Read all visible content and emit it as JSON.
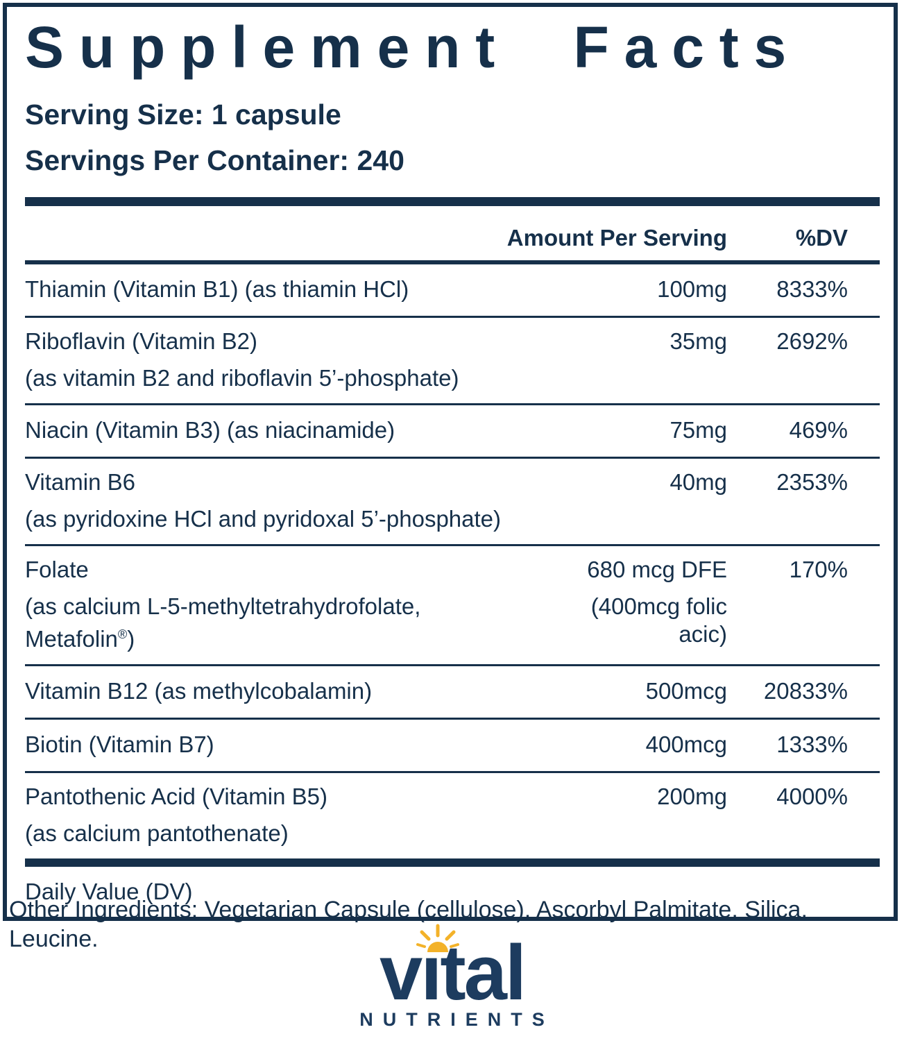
{
  "label": {
    "title": "Supplement Facts",
    "serving_size": "Serving Size: 1 capsule",
    "servings_per_container": "Servings Per Container: 240",
    "columns": {
      "amount": "Amount Per Serving",
      "dv": "%DV"
    },
    "rows": [
      {
        "name": "Thiamin (Vitamin B1) (as thiamin HCl)",
        "name2": "",
        "amount": "100mg",
        "amount2": "",
        "dv": "8333%"
      },
      {
        "name": "Riboflavin (Vitamin B2)",
        "name2": "(as vitamin B2 and riboflavin 5’-phosphate)",
        "amount": "35mg",
        "amount2": "",
        "dv": "2692%"
      },
      {
        "name": "Niacin (Vitamin B3) (as niacinamide)",
        "name2": "",
        "amount": "75mg",
        "amount2": "",
        "dv": "469%"
      },
      {
        "name": "Vitamin B6",
        "name2": "(as pyridoxine HCl and pyridoxal 5’-phosphate)",
        "amount": "40mg",
        "amount2": "",
        "dv": "2353%"
      },
      {
        "name": "Folate",
        "name2": "(as calcium L-5-methyltetrahydrofolate, Metafolin®)",
        "amount": "680 mcg DFE",
        "amount2": "(400mcg folic acic)",
        "dv": "170%"
      },
      {
        "name": "Vitamin B12 (as methylcobalamin)",
        "name2": "",
        "amount": "500mcg",
        "amount2": "",
        "dv": "20833%"
      },
      {
        "name": "Biotin (Vitamin B7)",
        "name2": "",
        "amount": "400mcg",
        "amount2": "",
        "dv": "1333%"
      },
      {
        "name": "Pantothenic Acid (Vitamin B5)",
        "name2": "(as calcium pantothenate)",
        "amount": "200mg",
        "amount2": "",
        "dv": "4000%"
      }
    ],
    "footnote": "Daily Value (DV)"
  },
  "other_ingredients": "Other Ingredients: Vegetarian Capsule (cellulose), Ascorbyl Palmitate, Silica, Leucine.",
  "brand": {
    "wordmark": "vital",
    "subtext": "NUTRIENTS"
  },
  "colors": {
    "navy_text": "#16304a",
    "logo_navy": "#1d3c5f",
    "sun_yellow": "#f3b229"
  }
}
